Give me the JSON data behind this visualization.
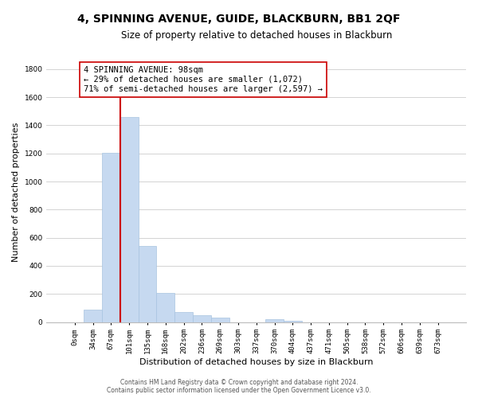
{
  "title": "4, SPINNING AVENUE, GUIDE, BLACKBURN, BB1 2QF",
  "subtitle": "Size of property relative to detached houses in Blackburn",
  "xlabel": "Distribution of detached houses by size in Blackburn",
  "ylabel": "Number of detached properties",
  "bar_labels": [
    "0sqm",
    "34sqm",
    "67sqm",
    "101sqm",
    "135sqm",
    "168sqm",
    "202sqm",
    "236sqm",
    "269sqm",
    "303sqm",
    "337sqm",
    "370sqm",
    "404sqm",
    "437sqm",
    "471sqm",
    "505sqm",
    "538sqm",
    "572sqm",
    "606sqm",
    "639sqm",
    "673sqm"
  ],
  "bar_heights": [
    0,
    90,
    1205,
    1460,
    540,
    205,
    70,
    48,
    30,
    0,
    0,
    20,
    10,
    0,
    0,
    0,
    0,
    0,
    0,
    0,
    0
  ],
  "bar_color": "#c6d9f0",
  "bar_edge_color": "#a8c4e0",
  "vline_color": "#cc0000",
  "ylim": [
    0,
    1850
  ],
  "yticks": [
    0,
    200,
    400,
    600,
    800,
    1000,
    1200,
    1400,
    1600,
    1800
  ],
  "annotation_text": "4 SPINNING AVENUE: 98sqm\n← 29% of detached houses are smaller (1,072)\n71% of semi-detached houses are larger (2,597) →",
  "annotation_box_color": "#ffffff",
  "annotation_box_edge": "#cc0000",
  "footer_line1": "Contains HM Land Registry data © Crown copyright and database right 2024.",
  "footer_line2": "Contains public sector information licensed under the Open Government Licence v3.0.",
  "background_color": "#ffffff",
  "grid_color": "#cccccc",
  "title_fontsize": 10,
  "subtitle_fontsize": 8.5,
  "axis_label_fontsize": 8,
  "tick_fontsize": 6.5,
  "annot_fontsize": 7.5,
  "footer_fontsize": 5.5,
  "vline_bar_index": 3
}
